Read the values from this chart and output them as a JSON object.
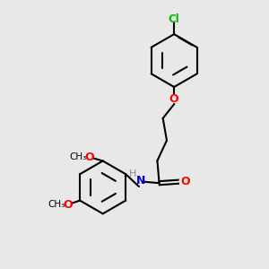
{
  "background_color": "#e8e8e8",
  "bond_color": "#000000",
  "cl_color": "#00bb00",
  "o_color": "#ff0000",
  "n_color": "#0000dd",
  "h_color": "#888888",
  "line_width": 1.5,
  "figsize": [
    3.0,
    3.0
  ],
  "dpi": 100,
  "xlim": [
    0,
    10
  ],
  "ylim": [
    0,
    10
  ]
}
